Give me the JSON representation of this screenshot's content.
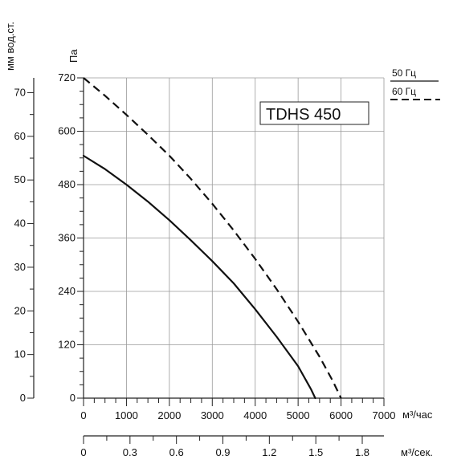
{
  "chart_data": {
    "type": "line",
    "model_label": "TDHS 450",
    "x_axis": {
      "unit_label": "м³/час",
      "range": [
        0,
        7000
      ],
      "ticks": [
        0,
        1000,
        2000,
        3000,
        4000,
        5000,
        6000,
        7000
      ],
      "tick_labels": [
        "0",
        "1000",
        "2000",
        "3000",
        "4000",
        "5000",
        "6000",
        "7000"
      ]
    },
    "x_axis_secondary": {
      "unit_label": "м³/сек.",
      "range": [
        0,
        1.94
      ],
      "ticks": [
        0,
        0.3,
        0.6,
        0.9,
        1.2,
        1.5,
        1.8
      ],
      "tick_labels": [
        "0",
        "0.3",
        "0.6",
        "0.9",
        "1.2",
        "1.5",
        "1.8"
      ]
    },
    "y_axis": {
      "unit_label": "Па",
      "range": [
        0,
        720
      ],
      "ticks": [
        0,
        120,
        240,
        360,
        480,
        600,
        720
      ],
      "tick_labels": [
        "0",
        "120",
        "240",
        "360",
        "480",
        "600",
        "720"
      ]
    },
    "y_axis_secondary": {
      "unit_label": "мм вод.ст.",
      "range": [
        0,
        73.4
      ],
      "ticks": [
        0,
        10,
        20,
        30,
        40,
        50,
        60,
        70
      ],
      "tick_labels": [
        "0",
        "10",
        "20",
        "30",
        "40",
        "50",
        "60",
        "70"
      ]
    },
    "grid": true,
    "legend_position": "top-right",
    "series": [
      {
        "name": "50 Гц",
        "style": "solid",
        "color": "#111111",
        "points": [
          [
            0,
            545
          ],
          [
            500,
            515
          ],
          [
            1000,
            480
          ],
          [
            1500,
            442
          ],
          [
            2000,
            400
          ],
          [
            2500,
            355
          ],
          [
            3000,
            308
          ],
          [
            3500,
            258
          ],
          [
            4000,
            200
          ],
          [
            4500,
            138
          ],
          [
            5000,
            72
          ],
          [
            5300,
            20
          ],
          [
            5400,
            0
          ]
        ]
      },
      {
        "name": "60 Гц",
        "style": "dashed",
        "color": "#111111",
        "points": [
          [
            0,
            720
          ],
          [
            500,
            680
          ],
          [
            1000,
            637
          ],
          [
            1500,
            592
          ],
          [
            2000,
            545
          ],
          [
            2500,
            493
          ],
          [
            3000,
            437
          ],
          [
            3500,
            377
          ],
          [
            4000,
            313
          ],
          [
            4500,
            245
          ],
          [
            5000,
            172
          ],
          [
            5500,
            93
          ],
          [
            5800,
            40
          ],
          [
            6000,
            0
          ]
        ]
      }
    ]
  }
}
